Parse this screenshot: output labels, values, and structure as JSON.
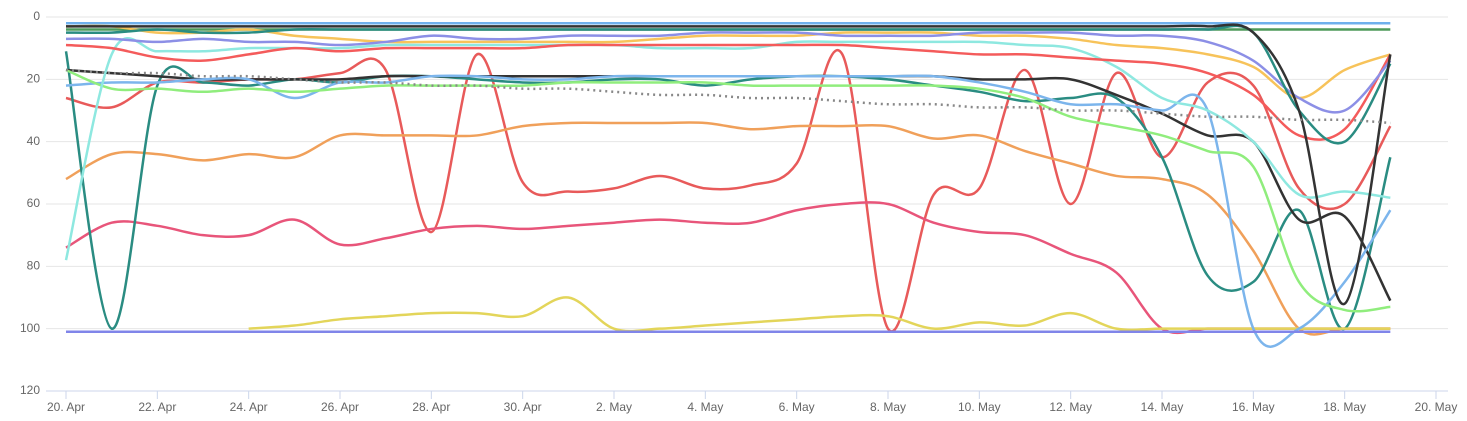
{
  "chart_data": {
    "type": "line",
    "x": [
      0,
      1,
      2,
      3,
      4,
      5,
      6,
      7,
      8,
      9,
      10,
      11,
      12,
      13,
      14,
      15,
      16,
      17,
      18,
      19,
      20,
      21,
      22,
      23,
      24,
      25,
      26,
      27,
      28,
      29
    ],
    "xlim": [
      0,
      30
    ],
    "xticks": [
      {
        "value": 0,
        "label": "20. Apr"
      },
      {
        "value": 2,
        "label": "22. Apr"
      },
      {
        "value": 4,
        "label": "24. Apr"
      },
      {
        "value": 6,
        "label": "26. Apr"
      },
      {
        "value": 8,
        "label": "28. Apr"
      },
      {
        "value": 10,
        "label": "30. Apr"
      },
      {
        "value": 12,
        "label": "2. May"
      },
      {
        "value": 14,
        "label": "4. May"
      },
      {
        "value": 16,
        "label": "6. May"
      },
      {
        "value": 18,
        "label": "8. May"
      },
      {
        "value": 20,
        "label": "10. May"
      },
      {
        "value": 22,
        "label": "12. May"
      },
      {
        "value": 24,
        "label": "14. May"
      },
      {
        "value": 26,
        "label": "16. May"
      },
      {
        "value": 28,
        "label": "18. May"
      },
      {
        "value": 30,
        "label": "20. May"
      }
    ],
    "ylim": [
      120,
      0
    ],
    "yticks": [
      0,
      20,
      40,
      60,
      80,
      100,
      120
    ],
    "grid": true,
    "series": [
      {
        "color": "#e85a5a",
        "values": [
          26,
          29,
          21,
          21,
          20,
          20,
          18,
          17,
          69,
          12,
          53,
          56,
          55,
          51,
          55,
          54,
          47,
          12,
          100,
          57,
          55,
          17,
          60,
          18,
          45,
          21,
          22,
          55,
          60,
          35
        ]
      },
      {
        "color": "#e8557a",
        "values": [
          74,
          66,
          67,
          70,
          70,
          65,
          73,
          71,
          68,
          67,
          68,
          67,
          66,
          65,
          66,
          66,
          62,
          60,
          60,
          66,
          69,
          70,
          76,
          82,
          100,
          100,
          100,
          100,
          100,
          100
        ]
      },
      {
        "color": "#f0a05a",
        "values": [
          52,
          44,
          44,
          46,
          44,
          45,
          38,
          38,
          38,
          38,
          35,
          34,
          34,
          34,
          34,
          36,
          35,
          35,
          35,
          39,
          38,
          43,
          47,
          51,
          52,
          57,
          75,
          100,
          100,
          100
        ]
      },
      {
        "color": "#2a8c82",
        "values": [
          11,
          100,
          22,
          21,
          22,
          20,
          21,
          19,
          19,
          20,
          21,
          21,
          20,
          20,
          22,
          20,
          19,
          19,
          20,
          22,
          24,
          27,
          26,
          26,
          45,
          83,
          85,
          62,
          100,
          45
        ]
      },
      {
        "color": "#e3d55a",
        "values": [
          null,
          null,
          null,
          null,
          100,
          99,
          97,
          96,
          95,
          95,
          96,
          90,
          100,
          100,
          99,
          98,
          97,
          96,
          96,
          100,
          98,
          99,
          95,
          100,
          100,
          100,
          100,
          100,
          100,
          100
        ]
      },
      {
        "color": "#333333",
        "values": [
          17,
          18,
          19,
          20,
          20,
          20,
          20,
          19,
          19,
          19,
          19,
          19,
          19,
          19,
          19,
          19,
          19,
          19,
          19,
          19,
          20,
          20,
          20,
          25,
          31,
          38,
          40,
          65,
          64,
          91
        ]
      },
      {
        "color": "#7cb5ec",
        "values": [
          22,
          21,
          21,
          20,
          20,
          26,
          21,
          21,
          19,
          19,
          20,
          20,
          19,
          19,
          19,
          19,
          19,
          19,
          19,
          19,
          21,
          24,
          28,
          28,
          30,
          30,
          100,
          100,
          85,
          62
        ]
      },
      {
        "color": "#90ed7d",
        "values": [
          17,
          23,
          23,
          24,
          23,
          24,
          23,
          22,
          22,
          22,
          22,
          21,
          21,
          21,
          21,
          22,
          22,
          22,
          22,
          22,
          23,
          26,
          32,
          35,
          38,
          43,
          48,
          85,
          94,
          93
        ]
      },
      {
        "color": "#8ee8e0",
        "values": [
          78,
          12,
          11,
          11,
          10,
          10,
          10,
          9,
          9,
          9,
          9,
          9,
          9,
          10,
          10,
          10,
          8,
          8,
          8,
          8,
          8,
          9,
          10,
          16,
          26,
          30,
          40,
          57,
          56,
          58
        ]
      },
      {
        "color": "#8085e9",
        "values": [
          101,
          101,
          101,
          101,
          101,
          101,
          101,
          101,
          101,
          101,
          101,
          101,
          101,
          101,
          101,
          101,
          101,
          101,
          101,
          101,
          101,
          101,
          101,
          101,
          101,
          101,
          101,
          101,
          101,
          101
        ]
      },
      {
        "color": "#6fb0ec",
        "values": [
          2,
          2,
          2,
          2,
          2,
          2,
          2,
          2,
          2,
          2,
          2,
          2,
          2,
          2,
          2,
          2,
          2,
          2,
          2,
          2,
          2,
          2,
          2,
          2,
          2,
          2,
          2,
          2,
          2,
          2
        ]
      },
      {
        "color": "#4e9a5a",
        "values": [
          4,
          4,
          4,
          4,
          4,
          4,
          4,
          4,
          4,
          4,
          4,
          4,
          4,
          4,
          4,
          4,
          4,
          4,
          4,
          4,
          4,
          4,
          4,
          4,
          4,
          4,
          4,
          4,
          4,
          4
        ]
      },
      {
        "color": "#f7c35a",
        "values": [
          3,
          3,
          5,
          5,
          4,
          6,
          7,
          8,
          8,
          8,
          8,
          8,
          8,
          7,
          6,
          6,
          6,
          5,
          5,
          5,
          6,
          6,
          7,
          9,
          10,
          12,
          16,
          26,
          17,
          12
        ]
      },
      {
        "color": "#f45b5b",
        "values": [
          9,
          10,
          13,
          14,
          12,
          10,
          11,
          10,
          10,
          10,
          10,
          9,
          9,
          9,
          9,
          9,
          9,
          9,
          10,
          11,
          12,
          12,
          13,
          14,
          15,
          18,
          25,
          38,
          36,
          12
        ]
      },
      {
        "color": "#8c8fe6",
        "values": [
          7,
          7,
          8,
          7,
          8,
          8,
          9,
          8,
          6,
          7,
          7,
          6,
          6,
          6,
          5,
          5,
          5,
          6,
          6,
          6,
          5,
          5,
          5,
          6,
          6,
          8,
          14,
          26,
          30,
          14
        ]
      },
      {
        "color": "#2a8c82",
        "values": [
          5,
          5,
          4,
          5,
          5,
          4,
          4,
          4,
          4,
          4,
          4,
          4,
          4,
          4,
          4,
          4,
          4,
          4,
          4,
          4,
          4,
          4,
          4,
          4,
          4,
          4,
          5,
          30,
          40,
          15
        ]
      },
      {
        "color": "#333333",
        "values": [
          3,
          3,
          3,
          3,
          3,
          3,
          3,
          3,
          3,
          3,
          3,
          3,
          3,
          3,
          3,
          3,
          3,
          3,
          3,
          3,
          3,
          3,
          3,
          3,
          3,
          3,
          5,
          30,
          92,
          12
        ]
      },
      {
        "color": "#888888",
        "dash": true,
        "values": [
          17,
          18,
          18,
          19,
          19,
          20,
          21,
          21,
          22,
          22,
          23,
          23,
          24,
          25,
          25,
          26,
          26,
          27,
          28,
          28,
          29,
          29,
          30,
          30,
          31,
          32,
          32,
          33,
          33,
          34
        ]
      }
    ]
  }
}
